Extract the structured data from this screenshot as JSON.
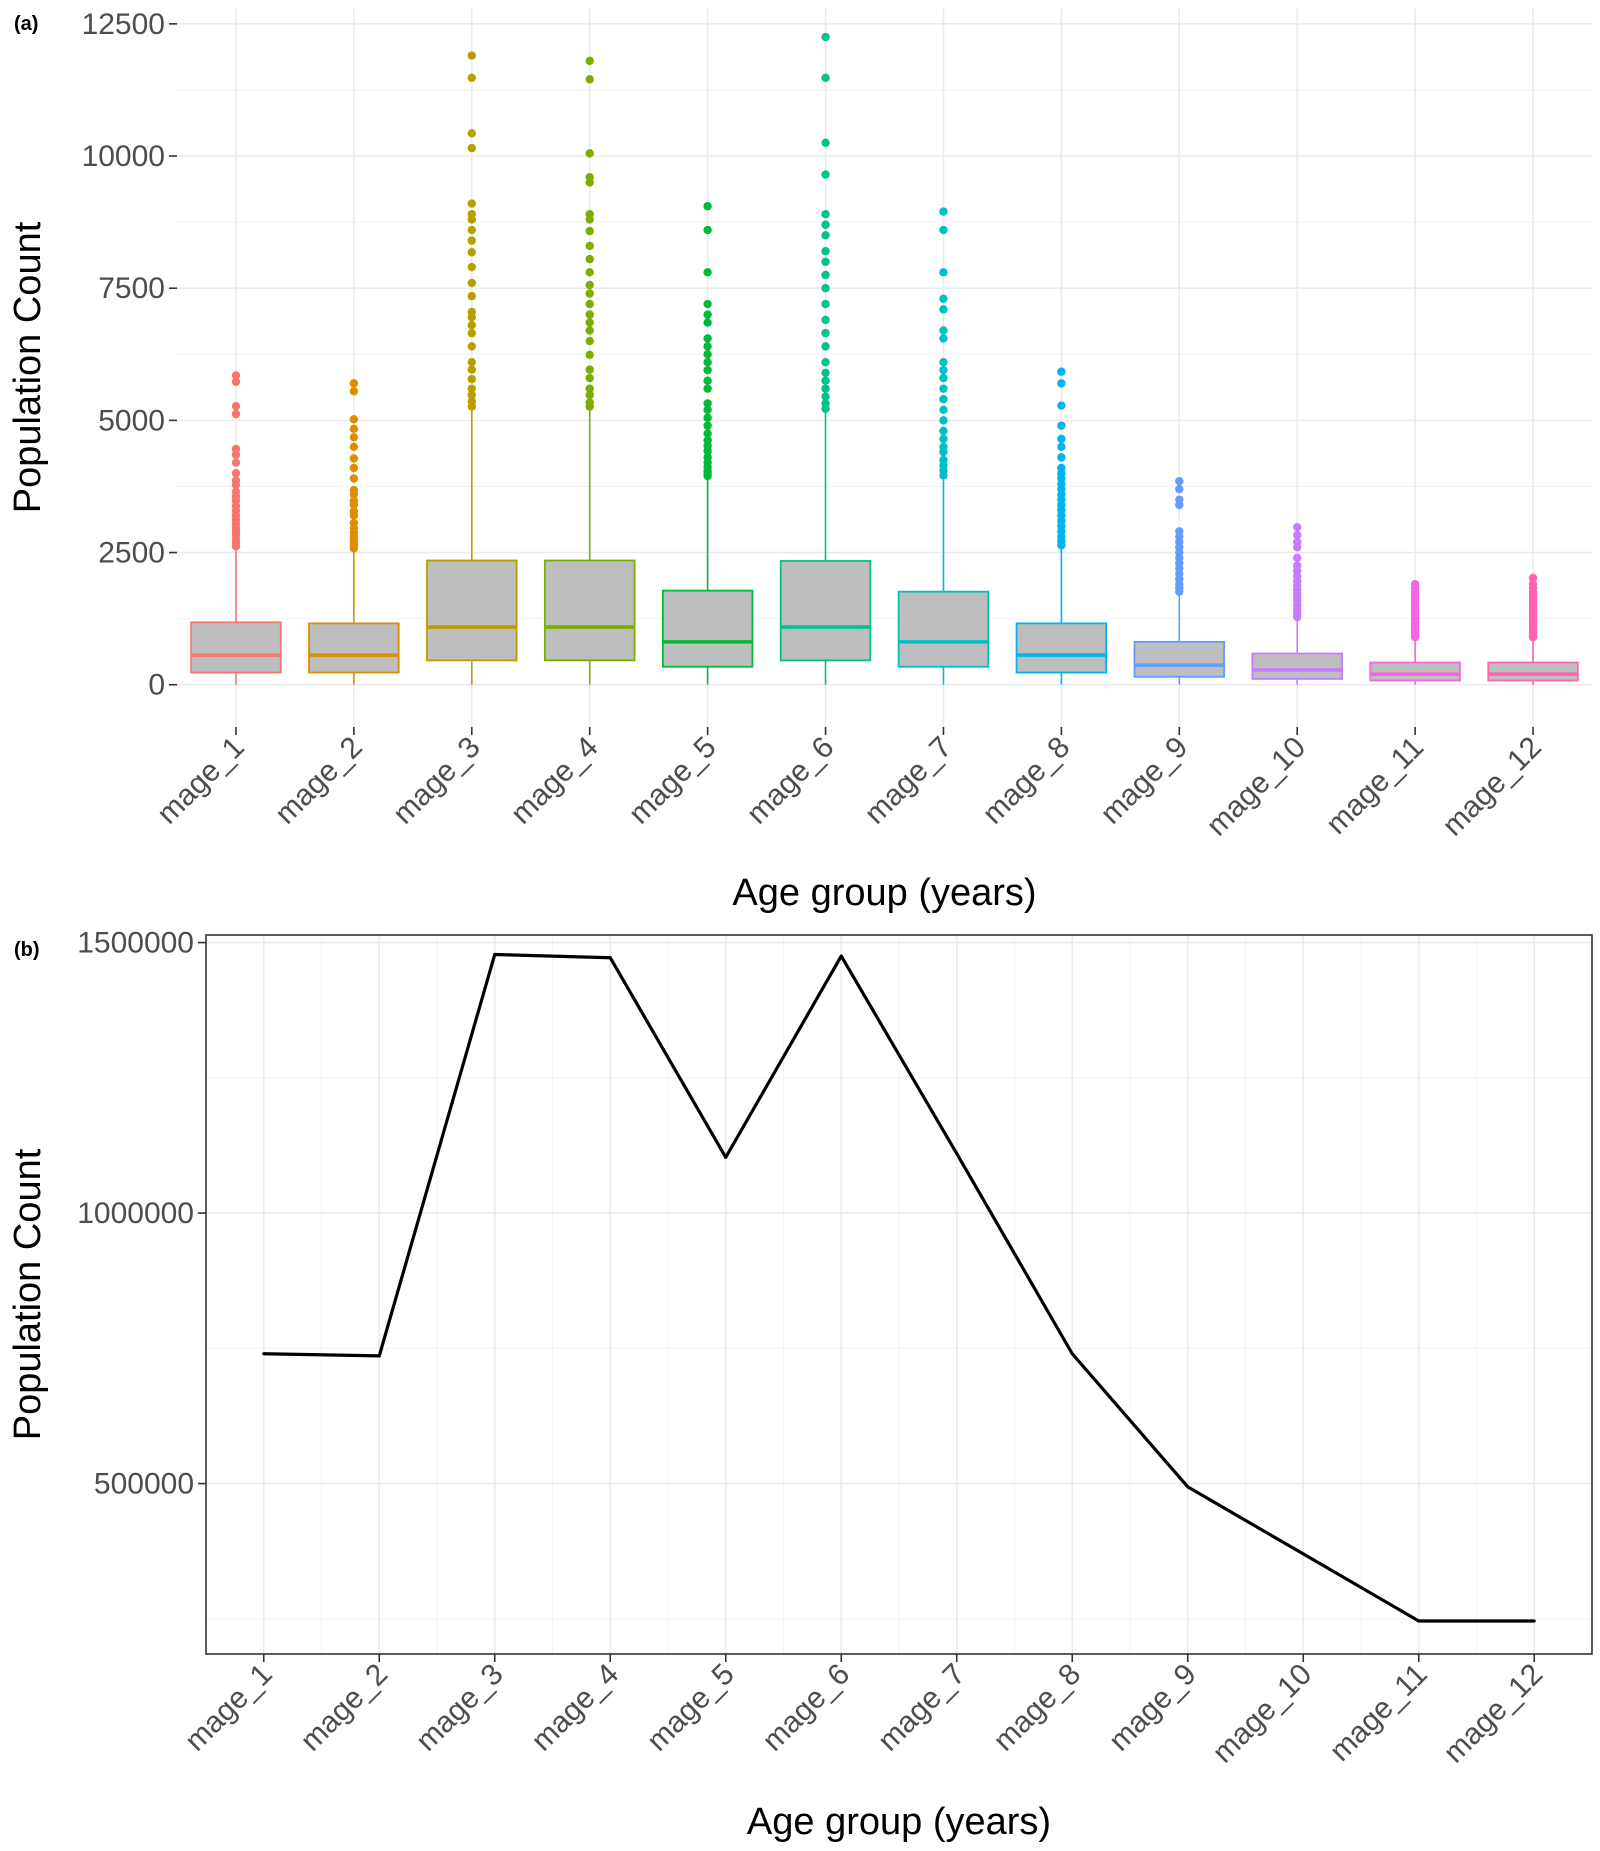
{
  "chart_data": [
    {
      "panel": "(a)",
      "type": "boxplot",
      "categories": [
        "mage_1",
        "mage_2",
        "mage_3",
        "mage_4",
        "mage_5",
        "mage_6",
        "mage_7",
        "mage_8",
        "mage_9",
        "mage_10",
        "mage_11",
        "mage_12"
      ],
      "xlabel": "Age group (years)",
      "ylabel": "Population Count",
      "ylim": [
        -800,
        12800
      ],
      "yticks": [
        0,
        2500,
        5000,
        7500,
        10000,
        12500
      ],
      "ytick_labels": [
        "0",
        "2500",
        "5000",
        "7500",
        "10000",
        "12500"
      ],
      "grid": true,
      "box_fill": "#bebebe",
      "colors": [
        "#f8766d",
        "#de8c00",
        "#b79f00",
        "#7cae00",
        "#00ba38",
        "#00c08b",
        "#00bfc4",
        "#00b4f0",
        "#619cff",
        "#c77cff",
        "#f564e3",
        "#ff64b0"
      ],
      "series": [
        {
          "name": "mage_1",
          "min": 0,
          "q1": 230,
          "median": 560,
          "q3": 1180,
          "max": 2610,
          "outliers": [
            2620,
            2680,
            2750,
            2830,
            2900,
            2960,
            3040,
            3120,
            3200,
            3290,
            3380,
            3480,
            3560,
            3650,
            3780,
            3860,
            4000,
            4200,
            4350,
            4460,
            5120,
            5270,
            5730,
            5850
          ]
        },
        {
          "name": "mage_2",
          "min": 0,
          "q1": 230,
          "median": 560,
          "q3": 1160,
          "max": 2560,
          "outliers": [
            2580,
            2620,
            2670,
            2730,
            2800,
            2880,
            2960,
            3060,
            3200,
            3280,
            3400,
            3480,
            3600,
            3680,
            3900,
            4100,
            4280,
            4500,
            4680,
            4840,
            5020,
            5550,
            5700
          ]
        },
        {
          "name": "mage_3",
          "min": 0,
          "q1": 460,
          "median": 1090,
          "q3": 2350,
          "max": 5200,
          "outliers": [
            5260,
            5360,
            5480,
            5600,
            5780,
            5960,
            6100,
            6400,
            6650,
            6800,
            6950,
            7050,
            7350,
            7600,
            7900,
            8180,
            8400,
            8600,
            8800,
            8900,
            9100,
            10150,
            10430,
            11480,
            11900
          ]
        },
        {
          "name": "mage_4",
          "min": 0,
          "q1": 460,
          "median": 1090,
          "q3": 2350,
          "max": 5180,
          "outliers": [
            5260,
            5340,
            5480,
            5600,
            5800,
            5960,
            6240,
            6500,
            6700,
            6850,
            7000,
            7200,
            7400,
            7560,
            7800,
            8050,
            8300,
            8580,
            8800,
            8900,
            9500,
            9600,
            10050,
            11450,
            11800
          ]
        },
        {
          "name": "mage_5",
          "min": 0,
          "q1": 340,
          "median": 810,
          "q3": 1780,
          "max": 3900,
          "outliers": [
            3950,
            4000,
            4050,
            4120,
            4200,
            4300,
            4420,
            4520,
            4620,
            4750,
            4900,
            5050,
            5200,
            5320,
            5600,
            5750,
            5950,
            6100,
            6250,
            6400,
            6550,
            6850,
            7000,
            7200,
            7800,
            8600,
            9050
          ]
        },
        {
          "name": "mage_6",
          "min": 0,
          "q1": 460,
          "median": 1090,
          "q3": 2340,
          "max": 5150,
          "outliers": [
            5220,
            5320,
            5450,
            5600,
            5750,
            5900,
            6100,
            6400,
            6650,
            6900,
            7200,
            7500,
            7750,
            8000,
            8200,
            8500,
            8700,
            8900,
            9650,
            10250,
            11480,
            12250
          ]
        },
        {
          "name": "mage_7",
          "min": 0,
          "q1": 340,
          "median": 810,
          "q3": 1760,
          "max": 3900,
          "outliers": [
            3960,
            4050,
            4150,
            4250,
            4400,
            4500,
            4650,
            4800,
            5000,
            5200,
            5400,
            5600,
            5800,
            5950,
            6100,
            6550,
            6700,
            7100,
            7300,
            7800,
            8600,
            8950
          ]
        },
        {
          "name": "mage_8",
          "min": 0,
          "q1": 230,
          "median": 560,
          "q3": 1160,
          "max": 2580,
          "outliers": [
            2640,
            2720,
            2800,
            2900,
            3000,
            3100,
            3200,
            3300,
            3400,
            3500,
            3600,
            3700,
            3800,
            3900,
            4000,
            4100,
            4300,
            4500,
            4650,
            4900,
            5280,
            5700,
            5920
          ]
        },
        {
          "name": "mage_9",
          "min": 0,
          "q1": 150,
          "median": 370,
          "q3": 810,
          "max": 1700,
          "outliers": [
            1760,
            1820,
            1900,
            2000,
            2100,
            2200,
            2300,
            2400,
            2500,
            2600,
            2700,
            2800,
            2900,
            3400,
            3500,
            3700,
            3850
          ]
        },
        {
          "name": "mage_10",
          "min": 0,
          "q1": 110,
          "median": 280,
          "q3": 590,
          "max": 1220,
          "outliers": [
            1280,
            1350,
            1420,
            1500,
            1580,
            1650,
            1720,
            1800,
            1880,
            1960,
            2050,
            2150,
            2250,
            2400,
            2600,
            2700,
            2830,
            2980
          ]
        },
        {
          "name": "mage_11",
          "min": 0,
          "q1": 80,
          "median": 200,
          "q3": 420,
          "max": 860,
          "outliers": [
            900,
            950,
            1000,
            1050,
            1100,
            1150,
            1200,
            1260,
            1320,
            1380,
            1440,
            1500,
            1560,
            1620,
            1680,
            1750,
            1820,
            1900
          ]
        },
        {
          "name": "mage_12",
          "min": 0,
          "q1": 80,
          "median": 200,
          "q3": 420,
          "max": 860,
          "outliers": [
            900,
            950,
            1000,
            1050,
            1100,
            1150,
            1200,
            1260,
            1320,
            1380,
            1440,
            1500,
            1560,
            1620,
            1680,
            1750,
            1820,
            1900,
            2020
          ]
        }
      ]
    },
    {
      "panel": "(b)",
      "type": "line",
      "categories": [
        "mage_1",
        "mage_2",
        "mage_3",
        "mage_4",
        "mage_5",
        "mage_6",
        "mage_7",
        "mage_8",
        "mage_9",
        "mage_10",
        "mage_11",
        "mage_12"
      ],
      "values": [
        740000,
        736000,
        1478000,
        1472000,
        1103000,
        1475000,
        1110000,
        740000,
        494000,
        370000,
        246000,
        246000
      ],
      "xlabel": "Age group (years)",
      "ylabel": "Population Count",
      "ylim": [
        185000,
        1514000
      ],
      "yticks": [
        500000,
        1000000,
        1500000
      ],
      "ytick_labels": [
        "500000",
        "1000000",
        "1500000"
      ],
      "minor_yticks": [
        250000,
        750000,
        1250000
      ],
      "grid": true,
      "panel_border": true,
      "line_color": "#000000"
    }
  ]
}
